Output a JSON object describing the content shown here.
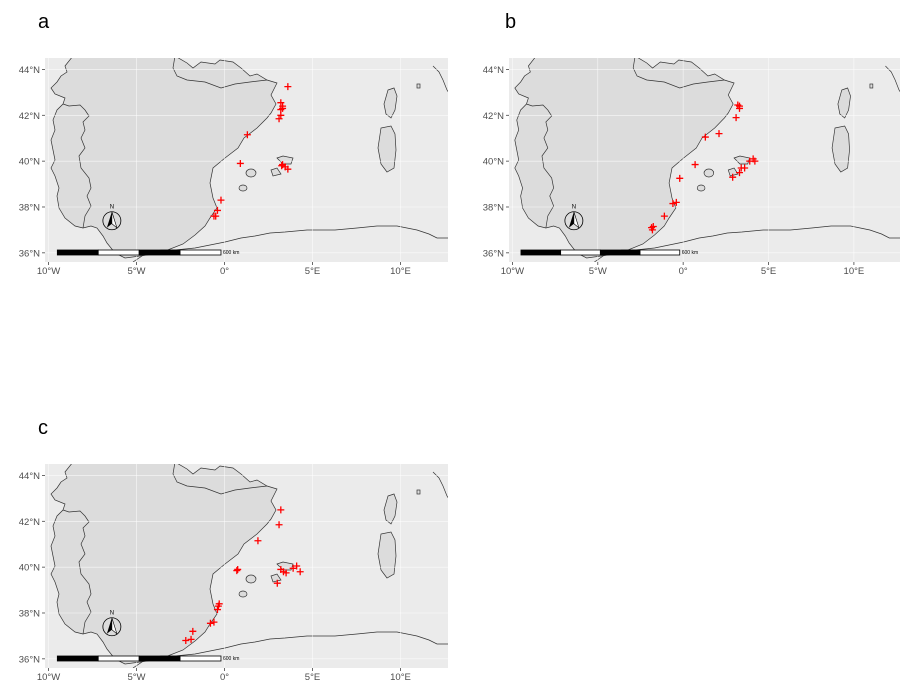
{
  "panels": [
    {
      "letter": "a",
      "points": [
        [
          0.9,
          39.9
        ],
        [
          1.3,
          41.15
        ],
        [
          -0.2,
          38.3
        ],
        [
          -0.4,
          37.85
        ],
        [
          -0.5,
          37.6
        ],
        [
          -0.6,
          37.6
        ],
        [
          3.1,
          41.85
        ],
        [
          3.2,
          42.0
        ],
        [
          3.2,
          42.25
        ],
        [
          3.3,
          42.4
        ],
        [
          3.2,
          42.55
        ],
        [
          3.3,
          42.3
        ],
        [
          3.6,
          43.25
        ],
        [
          3.25,
          39.8
        ],
        [
          3.45,
          39.75
        ],
        [
          3.6,
          39.65
        ],
        [
          3.3,
          39.85
        ]
      ]
    },
    {
      "letter": "b",
      "points": [
        [
          -1.8,
          37.0
        ],
        [
          -1.85,
          37.1
        ],
        [
          -1.75,
          37.15
        ],
        [
          -1.1,
          37.6
        ],
        [
          -0.6,
          38.15
        ],
        [
          -0.4,
          38.2
        ],
        [
          -0.2,
          39.25
        ],
        [
          0.7,
          39.85
        ],
        [
          1.3,
          41.05
        ],
        [
          2.1,
          41.2
        ],
        [
          3.1,
          41.9
        ],
        [
          3.2,
          42.45
        ],
        [
          3.3,
          42.4
        ],
        [
          3.3,
          42.3
        ],
        [
          2.9,
          39.3
        ],
        [
          3.3,
          39.5
        ],
        [
          3.4,
          39.7
        ],
        [
          3.6,
          39.7
        ],
        [
          3.9,
          40.0
        ],
        [
          4.1,
          40.1
        ],
        [
          4.2,
          40.0
        ]
      ]
    },
    {
      "letter": "c",
      "points": [
        [
          -2.2,
          36.8
        ],
        [
          -1.9,
          36.85
        ],
        [
          -1.8,
          37.2
        ],
        [
          -0.8,
          37.55
        ],
        [
          -0.6,
          37.6
        ],
        [
          -0.4,
          38.15
        ],
        [
          -0.35,
          38.3
        ],
        [
          -0.3,
          38.4
        ],
        [
          0.7,
          39.85
        ],
        [
          0.75,
          39.9
        ],
        [
          1.9,
          41.15
        ],
        [
          3.1,
          41.85
        ],
        [
          3.2,
          42.5
        ],
        [
          3.0,
          39.3
        ],
        [
          3.2,
          39.9
        ],
        [
          3.35,
          39.8
        ],
        [
          3.5,
          39.75
        ],
        [
          3.9,
          39.95
        ],
        [
          4.1,
          40.05
        ],
        [
          4.3,
          39.8
        ]
      ]
    }
  ],
  "axes": {
    "x_ticks": [
      {
        "v": -10,
        "label": "10°W"
      },
      {
        "v": -5,
        "label": "5°W"
      },
      {
        "v": 0,
        "label": "0°"
      },
      {
        "v": 5,
        "label": "5°E"
      },
      {
        "v": 10,
        "label": "10°E"
      }
    ],
    "y_ticks": [
      {
        "v": 36,
        "label": "36°N"
      },
      {
        "v": 38,
        "label": "38°N"
      },
      {
        "v": 40,
        "label": "40°N"
      },
      {
        "v": 42,
        "label": "42°N"
      },
      {
        "v": 44,
        "label": "44°N"
      }
    ],
    "lon_range": [
      -10.2,
      12.7
    ],
    "lat_range": [
      35.6,
      44.5
    ]
  },
  "scale_bar_label": "600 km",
  "north_arrow_label": "N",
  "colors": {
    "land": "#dcdcdc",
    "panel_bg": "#ebebeb",
    "grid": "#ffffff",
    "marker": "#ff0000",
    "coast": "#333333"
  }
}
